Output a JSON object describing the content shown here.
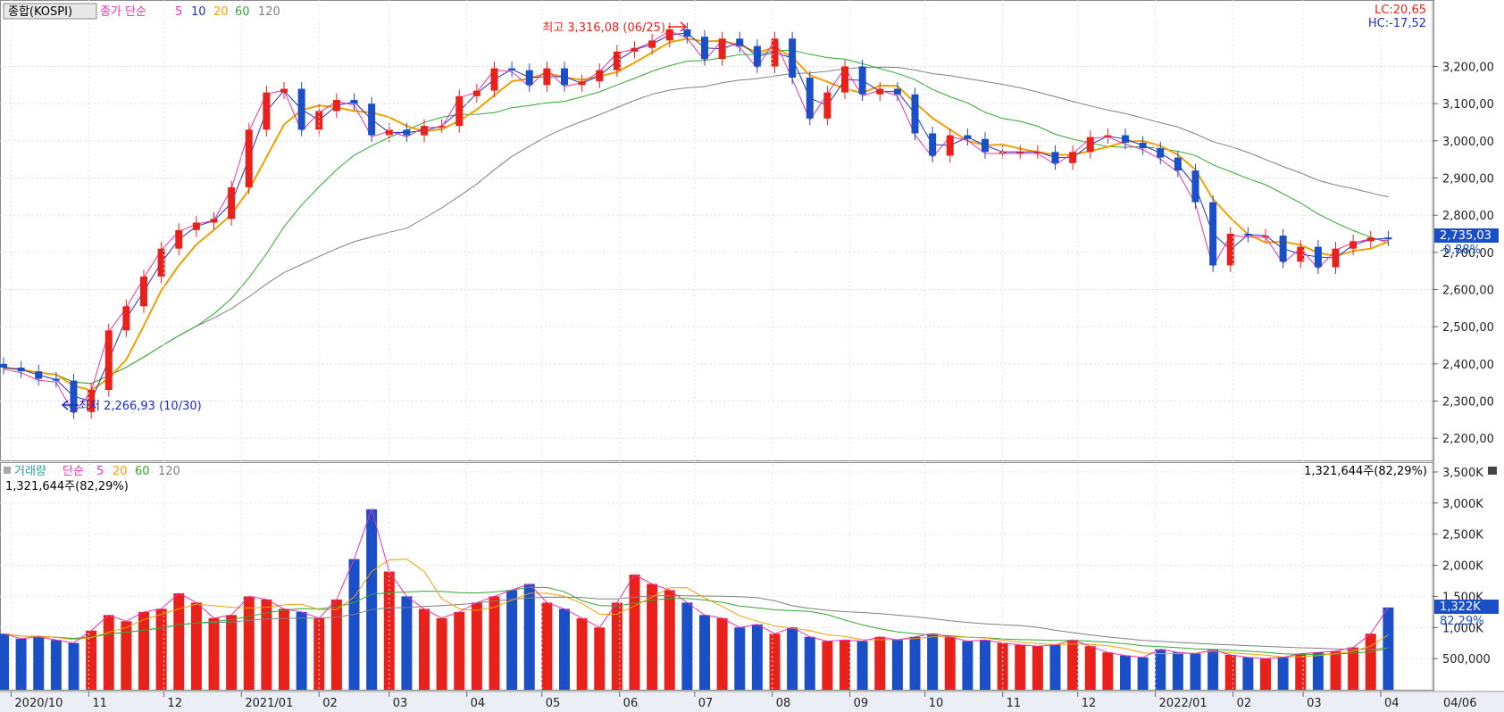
{
  "price_panel": {
    "title": "종합(KOSPI)",
    "indicator_label": "종가 단순",
    "ma_periods": [
      "5",
      "10",
      "20",
      "60",
      "120"
    ],
    "lc": "LC:20,65",
    "hc": "HC:-17,52",
    "current_price": "2,735,03",
    "current_change": "-0,88%",
    "high_annotation": "최고 3,316,08 (06/25)",
    "low_annotation": "최저 2,266,93 (10/30)",
    "y_ticks": [
      "3,200,00",
      "3,100,00",
      "3,000,00",
      "2,900,00",
      "2,800,00",
      "2,700,00",
      "2,600,00",
      "2,500,00",
      "2,400,00",
      "2,300,00",
      "2,200,00"
    ]
  },
  "volume_panel": {
    "title": "거래량",
    "indicator_label": "단순",
    "ma_periods": [
      "5",
      "20",
      "60",
      "120"
    ],
    "left_value": "1,321,644주(82,29%)",
    "right_value": "1,321,644주(82,29%)",
    "current_volume": "1,322K",
    "current_pct": "82,29%",
    "y_ticks": [
      "3,500K",
      "3,000K",
      "2,500K",
      "2,000K",
      "1,500K",
      "1,000K",
      "500,000"
    ]
  },
  "x_labels": [
    "2020/10",
    "11",
    "12",
    "2021/01",
    "02",
    "03",
    "04",
    "05",
    "06",
    "07",
    "08",
    "09",
    "10",
    "11",
    "12",
    "2022/01",
    "02",
    "03",
    "04",
    "04/06"
  ],
  "colors": {
    "up": "#e8221b",
    "down": "#1a4fc8",
    "ma5": "#e830b0",
    "ma10": "#2030c0",
    "ma20": "#f0a000",
    "ma60": "#30a830",
    "ma120": "#808080"
  },
  "chart_data": [
    {
      "type": "candlestick",
      "title": "종합(KOSPI)",
      "x_range": [
        "2020/09/28",
        "2022/04/06"
      ],
      "ylim": [
        2150,
        3350
      ],
      "series": [
        {
          "name": "종가",
          "values": [
            {
              "d": "2020-09-28",
              "c": 2390
            },
            {
              "d": "2020-10-05",
              "c": 2380
            },
            {
              "d": "2020-10-12",
              "c": 2360
            },
            {
              "d": "2020-10-19",
              "c": 2355
            },
            {
              "d": "2020-10-26",
              "c": 2270
            },
            {
              "d": "2020-11-02",
              "c": 2330
            },
            {
              "d": "2020-11-09",
              "c": 2490
            },
            {
              "d": "2020-11-16",
              "c": 2555
            },
            {
              "d": "2020-11-23",
              "c": 2635
            },
            {
              "d": "2020-11-30",
              "c": 2710
            },
            {
              "d": "2020-12-07",
              "c": 2760
            },
            {
              "d": "2020-12-14",
              "c": 2780
            },
            {
              "d": "2020-12-21",
              "c": 2790
            },
            {
              "d": "2020-12-28",
              "c": 2875
            },
            {
              "d": "2021-01-04",
              "c": 3030
            },
            {
              "d": "2021-01-11",
              "c": 3130
            },
            {
              "d": "2021-01-18",
              "c": 3140
            },
            {
              "d": "2021-01-25",
              "c": 3030
            },
            {
              "d": "2021-02-01",
              "c": 3080
            },
            {
              "d": "2021-02-08",
              "c": 3110
            },
            {
              "d": "2021-02-15",
              "c": 3100
            },
            {
              "d": "2021-02-22",
              "c": 3015
            },
            {
              "d": "2021-03-01",
              "c": 3030
            },
            {
              "d": "2021-03-08",
              "c": 3015
            },
            {
              "d": "2021-03-15",
              "c": 3040
            },
            {
              "d": "2021-03-22",
              "c": 3040
            },
            {
              "d": "2021-03-29",
              "c": 3120
            },
            {
              "d": "2021-04-05",
              "c": 3135
            },
            {
              "d": "2021-04-12",
              "c": 3195
            },
            {
              "d": "2021-04-19",
              "c": 3190
            },
            {
              "d": "2021-04-26",
              "c": 3150
            },
            {
              "d": "2021-05-03",
              "c": 3195
            },
            {
              "d": "2021-05-10",
              "c": 3150
            },
            {
              "d": "2021-05-17",
              "c": 3160
            },
            {
              "d": "2021-05-24",
              "c": 3190
            },
            {
              "d": "2021-05-31",
              "c": 3240
            },
            {
              "d": "2021-06-07",
              "c": 3250
            },
            {
              "d": "2021-06-14",
              "c": 3270
            },
            {
              "d": "2021-06-21",
              "c": 3300
            },
            {
              "d": "2021-06-28",
              "c": 3280
            },
            {
              "d": "2021-07-05",
              "c": 3220
            },
            {
              "d": "2021-07-12",
              "c": 3275
            },
            {
              "d": "2021-07-19",
              "c": 3255
            },
            {
              "d": "2021-07-26",
              "c": 3200
            },
            {
              "d": "2021-08-02",
              "c": 3275
            },
            {
              "d": "2021-08-09",
              "c": 3170
            },
            {
              "d": "2021-08-16",
              "c": 3060
            },
            {
              "d": "2021-08-23",
              "c": 3130
            },
            {
              "d": "2021-08-30",
              "c": 3200
            },
            {
              "d": "2021-09-06",
              "c": 3125
            },
            {
              "d": "2021-09-13",
              "c": 3140
            },
            {
              "d": "2021-09-20",
              "c": 3125
            },
            {
              "d": "2021-09-27",
              "c": 3020
            },
            {
              "d": "2021-10-04",
              "c": 2960
            },
            {
              "d": "2021-10-11",
              "c": 3015
            },
            {
              "d": "2021-10-18",
              "c": 3005
            },
            {
              "d": "2021-10-25",
              "c": 2970
            },
            {
              "d": "2021-11-01",
              "c": 2970
            },
            {
              "d": "2021-11-08",
              "c": 2970
            },
            {
              "d": "2021-11-15",
              "c": 2970
            },
            {
              "d": "2021-11-22",
              "c": 2940
            },
            {
              "d": "2021-11-29",
              "c": 2970
            },
            {
              "d": "2021-12-06",
              "c": 3010
            },
            {
              "d": "2021-12-13",
              "c": 3015
            },
            {
              "d": "2021-12-20",
              "c": 2995
            },
            {
              "d": "2021-12-27",
              "c": 2980
            },
            {
              "d": "2022-01-03",
              "c": 2955
            },
            {
              "d": "2022-01-10",
              "c": 2920
            },
            {
              "d": "2022-01-17",
              "c": 2835
            },
            {
              "d": "2022-01-24",
              "c": 2665
            },
            {
              "d": "2022-01-31",
              "c": 2750
            },
            {
              "d": "2022-02-07",
              "c": 2745
            },
            {
              "d": "2022-02-14",
              "c": 2745
            },
            {
              "d": "2022-02-21",
              "c": 2675
            },
            {
              "d": "2022-02-28",
              "c": 2715
            },
            {
              "d": "2022-03-07",
              "c": 2660
            },
            {
              "d": "2022-03-14",
              "c": 2710
            },
            {
              "d": "2022-03-21",
              "c": 2730
            },
            {
              "d": "2022-03-28",
              "c": 2740
            },
            {
              "d": "2022-04-04",
              "c": 2735
            }
          ]
        },
        {
          "name": "5",
          "color": "#e830b0"
        },
        {
          "name": "10",
          "color": "#2030c0"
        },
        {
          "name": "20",
          "color": "#f0a000"
        },
        {
          "name": "60",
          "color": "#30a830"
        },
        {
          "name": "120",
          "color": "#808080"
        }
      ],
      "annotations": [
        {
          "text": "최고 3,316,08 (06/25)",
          "x": "2021-06-25",
          "y": 3316.08
        },
        {
          "text": "최저 2,266,93 (10/30)",
          "x": "2020-10-30",
          "y": 2266.93
        }
      ]
    },
    {
      "type": "bar",
      "title": "거래량",
      "ylim": [
        0,
        3600000
      ],
      "values": [
        {
          "d": "2020-09-28",
          "v": 900000
        },
        {
          "d": "2020-10-05",
          "v": 820000
        },
        {
          "d": "2020-10-12",
          "v": 850000
        },
        {
          "d": "2020-10-19",
          "v": 800000
        },
        {
          "d": "2020-10-26",
          "v": 750000
        },
        {
          "d": "2020-11-02",
          "v": 950000
        },
        {
          "d": "2020-11-09",
          "v": 1200000
        },
        {
          "d": "2020-11-16",
          "v": 1100000
        },
        {
          "d": "2020-11-23",
          "v": 1250000
        },
        {
          "d": "2020-11-30",
          "v": 1300000
        },
        {
          "d": "2020-12-07",
          "v": 1550000
        },
        {
          "d": "2020-12-14",
          "v": 1400000
        },
        {
          "d": "2020-12-21",
          "v": 1150000
        },
        {
          "d": "2020-12-28",
          "v": 1200000
        },
        {
          "d": "2021-01-04",
          "v": 1500000
        },
        {
          "d": "2021-01-11",
          "v": 1450000
        },
        {
          "d": "2021-01-18",
          "v": 1300000
        },
        {
          "d": "2021-01-25",
          "v": 1250000
        },
        {
          "d": "2021-02-01",
          "v": 1150000
        },
        {
          "d": "2021-02-08",
          "v": 1450000
        },
        {
          "d": "2021-02-15",
          "v": 2100000
        },
        {
          "d": "2021-02-22",
          "v": 2900000
        },
        {
          "d": "2021-03-01",
          "v": 1900000
        },
        {
          "d": "2021-03-08",
          "v": 1500000
        },
        {
          "d": "2021-03-15",
          "v": 1300000
        },
        {
          "d": "2021-03-22",
          "v": 1150000
        },
        {
          "d": "2021-03-29",
          "v": 1250000
        },
        {
          "d": "2021-04-05",
          "v": 1400000
        },
        {
          "d": "2021-04-12",
          "v": 1500000
        },
        {
          "d": "2021-04-19",
          "v": 1600000
        },
        {
          "d": "2021-04-26",
          "v": 1700000
        },
        {
          "d": "2021-05-03",
          "v": 1400000
        },
        {
          "d": "2021-05-10",
          "v": 1300000
        },
        {
          "d": "2021-05-17",
          "v": 1150000
        },
        {
          "d": "2021-05-24",
          "v": 1000000
        },
        {
          "d": "2021-05-31",
          "v": 1400000
        },
        {
          "d": "2021-06-07",
          "v": 1850000
        },
        {
          "d": "2021-06-14",
          "v": 1700000
        },
        {
          "d": "2021-06-21",
          "v": 1600000
        },
        {
          "d": "2021-06-28",
          "v": 1400000
        },
        {
          "d": "2021-07-05",
          "v": 1200000
        },
        {
          "d": "2021-07-12",
          "v": 1150000
        },
        {
          "d": "2021-07-19",
          "v": 1000000
        },
        {
          "d": "2021-07-26",
          "v": 1050000
        },
        {
          "d": "2021-08-02",
          "v": 900000
        },
        {
          "d": "2021-08-09",
          "v": 1000000
        },
        {
          "d": "2021-08-16",
          "v": 850000
        },
        {
          "d": "2021-08-23",
          "v": 780000
        },
        {
          "d": "2021-08-30",
          "v": 800000
        },
        {
          "d": "2021-09-06",
          "v": 780000
        },
        {
          "d": "2021-09-13",
          "v": 850000
        },
        {
          "d": "2021-09-20",
          "v": 800000
        },
        {
          "d": "2021-09-27",
          "v": 850000
        },
        {
          "d": "2021-10-04",
          "v": 900000
        },
        {
          "d": "2021-10-11",
          "v": 850000
        },
        {
          "d": "2021-10-18",
          "v": 780000
        },
        {
          "d": "2021-10-25",
          "v": 800000
        },
        {
          "d": "2021-11-01",
          "v": 750000
        },
        {
          "d": "2021-11-08",
          "v": 720000
        },
        {
          "d": "2021-11-15",
          "v": 700000
        },
        {
          "d": "2021-11-22",
          "v": 720000
        },
        {
          "d": "2021-11-29",
          "v": 800000
        },
        {
          "d": "2021-12-06",
          "v": 700000
        },
        {
          "d": "2021-12-13",
          "v": 600000
        },
        {
          "d": "2021-12-20",
          "v": 550000
        },
        {
          "d": "2021-12-27",
          "v": 520000
        },
        {
          "d": "2022-01-03",
          "v": 650000
        },
        {
          "d": "2022-01-10",
          "v": 600000
        },
        {
          "d": "2022-01-17",
          "v": 580000
        },
        {
          "d": "2022-01-24",
          "v": 640000
        },
        {
          "d": "2022-01-31",
          "v": 560000
        },
        {
          "d": "2022-02-07",
          "v": 520000
        },
        {
          "d": "2022-02-14",
          "v": 500000
        },
        {
          "d": "2022-02-21",
          "v": 520000
        },
        {
          "d": "2022-02-28",
          "v": 580000
        },
        {
          "d": "2022-03-07",
          "v": 600000
        },
        {
          "d": "2022-03-14",
          "v": 620000
        },
        {
          "d": "2022-03-21",
          "v": 680000
        },
        {
          "d": "2022-03-28",
          "v": 900000
        },
        {
          "d": "2022-04-04",
          "v": 1322000
        }
      ],
      "series": [
        {
          "name": "5",
          "color": "#e830b0"
        },
        {
          "name": "20",
          "color": "#f0a000"
        },
        {
          "name": "60",
          "color": "#30a830"
        },
        {
          "name": "120",
          "color": "#808080"
        }
      ]
    }
  ]
}
